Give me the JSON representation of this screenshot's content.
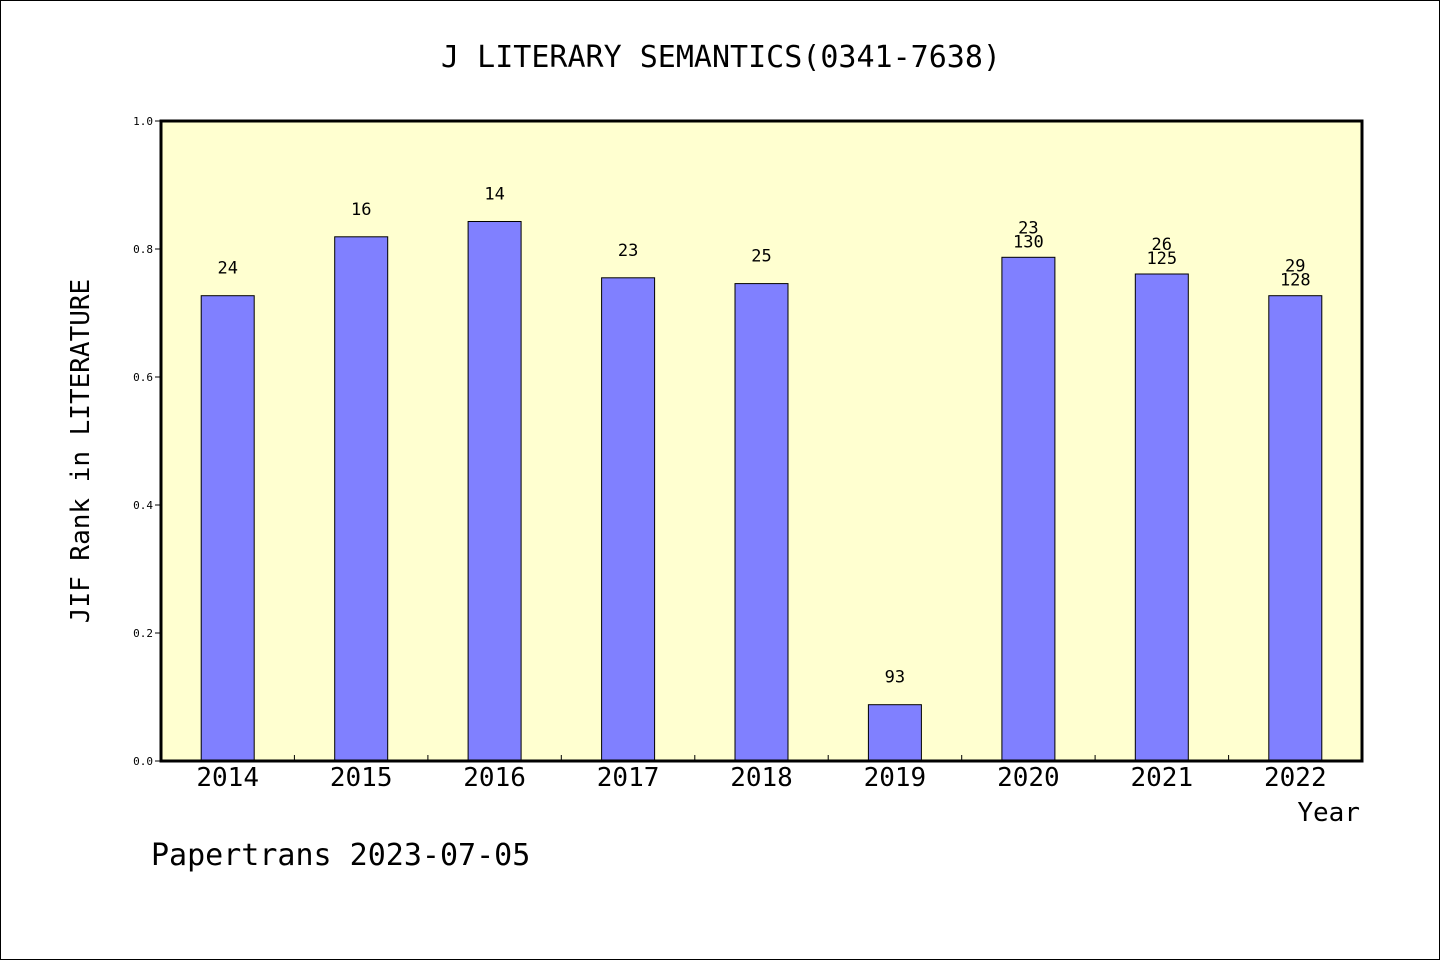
{
  "chart_data": {
    "type": "bar",
    "title": "J LITERARY SEMANTICS(0341-7638)",
    "xlabel": "Year",
    "ylabel": "JIF Rank in LITERATURE",
    "ylim": [
      0,
      1.0
    ],
    "yticks": [
      "0.0",
      "0.2",
      "0.4",
      "0.6",
      "0.8",
      "1.0"
    ],
    "grid": false,
    "categories": [
      "2014",
      "2015",
      "2016",
      "2017",
      "2018",
      "2019",
      "2020",
      "2021",
      "2022"
    ],
    "values": [
      0.727,
      0.819,
      0.843,
      0.755,
      0.746,
      0.088,
      0.787,
      0.761,
      0.727
    ],
    "labels": [
      [
        "24"
      ],
      [
        "16"
      ],
      [
        "14"
      ],
      [
        "23"
      ],
      [
        "25"
      ],
      [
        "93"
      ],
      [
        "23",
        "130"
      ],
      [
        "26",
        "125"
      ],
      [
        "29",
        "128"
      ]
    ],
    "colors": {
      "plot_background": "#ffffd0",
      "bar_fill": "#8080ff",
      "bar_stroke": "#000000"
    }
  },
  "footer": {
    "text": "Papertrans 2023-07-05"
  }
}
